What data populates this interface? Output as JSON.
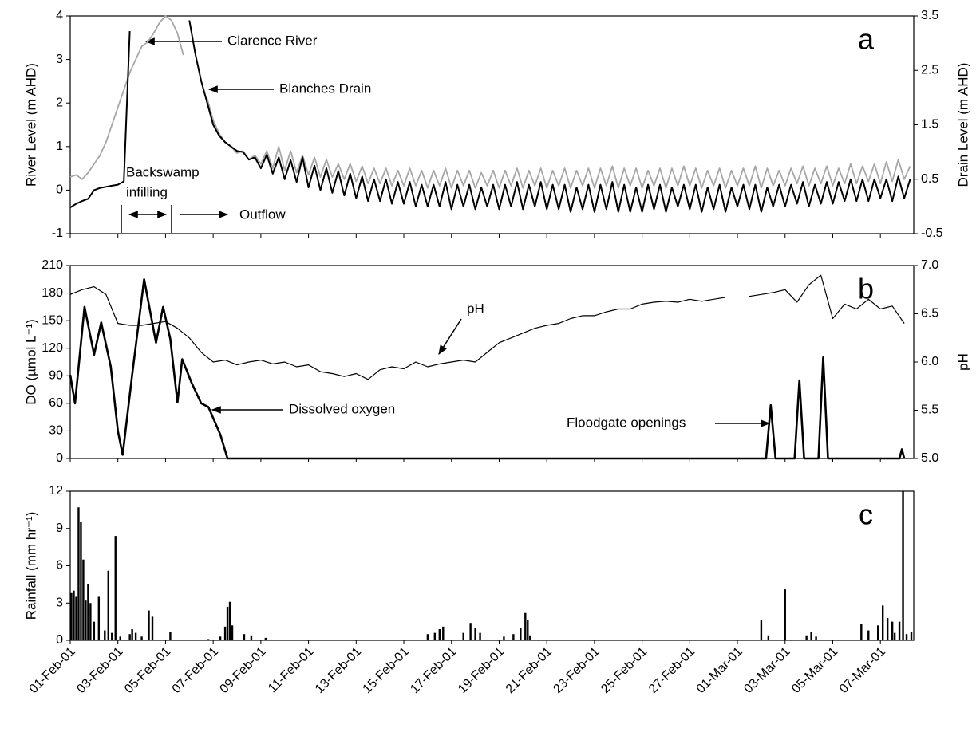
{
  "chart_data": [
    {
      "type": "line",
      "panel_label": "a",
      "y_label": "River Level (m AHD)",
      "y2_label": "Drain Level (m AHD)",
      "xlim": [
        0,
        35.4
      ],
      "ylim": [
        -1,
        4
      ],
      "yticks": [
        -1,
        0,
        1,
        2,
        3,
        4
      ],
      "y2lim": [
        -0.5,
        3.5
      ],
      "y2ticks": [
        -0.5,
        0.5,
        1.5,
        2.5,
        3.5
      ],
      "annotations": [
        "Backswamp",
        "infilling",
        "Outflow"
      ],
      "x": [
        0,
        0.25,
        0.5,
        0.75,
        1,
        1.25,
        1.5,
        1.75,
        2,
        2.25,
        2.5,
        2.75,
        3,
        3.25,
        3.5,
        3.75,
        4,
        4.25,
        4.5,
        4.75,
        5,
        5.25,
        5.5,
        5.75,
        6,
        6.25,
        6.5,
        6.75,
        7,
        7.25,
        7.5,
        7.75,
        8,
        8.25,
        8.5,
        8.75,
        9,
        9.25,
        9.5,
        9.75,
        10,
        10.25,
        10.5,
        10.75,
        11,
        11.25,
        11.5,
        11.75,
        12,
        12.25,
        12.5,
        12.75,
        13,
        13.25,
        13.5,
        13.75,
        14,
        14.25,
        14.5,
        14.75,
        15,
        15.25,
        15.5,
        15.75,
        16,
        16.25,
        16.5,
        16.75,
        17,
        17.25,
        17.5,
        17.75,
        18,
        18.25,
        18.5,
        18.75,
        19,
        19.25,
        19.5,
        19.75,
        20,
        20.25,
        20.5,
        20.75,
        21,
        21.25,
        21.5,
        21.75,
        22,
        22.25,
        22.5,
        22.75,
        23,
        23.25,
        23.5,
        23.75,
        24,
        24.25,
        24.5,
        24.75,
        25,
        25.25,
        25.5,
        25.75,
        26,
        26.25,
        26.5,
        26.75,
        27,
        27.25,
        27.5,
        27.75,
        28,
        28.25,
        28.5,
        28.75,
        29,
        29.25,
        29.5,
        29.75,
        30,
        30.25,
        30.5,
        30.75,
        31,
        31.25,
        31.5,
        31.75,
        32,
        32.25,
        32.5,
        32.75,
        33,
        33.25,
        33.5,
        33.75,
        34,
        34.25,
        34.5,
        34.75,
        35,
        35.25
      ],
      "series": [
        {
          "name": "Clarence River",
          "color": "#a6a6a6",
          "axis": "y",
          "values": [
            0.3,
            0.35,
            0.25,
            0.4,
            0.6,
            0.8,
            1.1,
            1.5,
            1.9,
            2.3,
            2.7,
            3.0,
            3.3,
            3.4,
            3.6,
            3.85,
            4.0,
            3.9,
            3.6,
            3.1,
            null,
            null,
            null,
            2.1,
            1.6,
            1.3,
            1.1,
            1.0,
            0.85,
            0.9,
            0.7,
            0.8,
            0.6,
            0.9,
            0.5,
            1.0,
            0.45,
            0.9,
            0.4,
            0.8,
            0.35,
            0.75,
            0.3,
            0.7,
            0.3,
            0.6,
            0.25,
            0.6,
            0.2,
            0.55,
            0.15,
            0.5,
            0.15,
            0.5,
            0.1,
            0.45,
            0.1,
            0.5,
            0.1,
            0.45,
            0.05,
            0.45,
            0.1,
            0.5,
            0.05,
            0.45,
            0.1,
            0.45,
            0.05,
            0.4,
            0.1,
            0.45,
            0.05,
            0.45,
            0.1,
            0.5,
            0.05,
            0.45,
            0.1,
            0.5,
            0.05,
            0.45,
            0.1,
            0.5,
            0.05,
            0.45,
            0.1,
            0.5,
            0.05,
            0.5,
            0.1,
            0.55,
            0.05,
            0.5,
            0.1,
            0.5,
            0.05,
            0.45,
            0.1,
            0.5,
            0.05,
            0.5,
            0.1,
            0.55,
            0.1,
            0.5,
            0.05,
            0.45,
            0.1,
            0.5,
            0.05,
            0.45,
            0.1,
            0.5,
            0.1,
            0.55,
            0.05,
            0.5,
            0.1,
            0.45,
            0.1,
            0.5,
            0.15,
            0.55,
            0.1,
            0.5,
            0.15,
            0.55,
            0.1,
            0.5,
            0.15,
            0.6,
            0.15,
            0.55,
            0.2,
            0.6,
            0.15,
            0.65,
            0.2,
            0.7,
            0.25,
            0.55
          ]
        },
        {
          "name": "Blanches Drain",
          "color": "#000000",
          "axis": "y2",
          "values": [
            -0.02,
            0.05,
            0.1,
            0.14,
            0.3,
            0.34,
            0.36,
            0.38,
            0.4,
            0.46,
            3.22,
            null,
            null,
            null,
            null,
            null,
            null,
            null,
            null,
            null,
            3.42,
            2.8,
            2.3,
            1.9,
            1.5,
            1.3,
            1.18,
            1.1,
            1.02,
            1.0,
            0.86,
            0.9,
            0.7,
            0.95,
            0.6,
            0.9,
            0.5,
            0.85,
            0.45,
            0.9,
            0.35,
            0.75,
            0.3,
            0.7,
            0.25,
            0.65,
            0.2,
            0.6,
            0.15,
            0.55,
            0.1,
            0.5,
            0.1,
            0.5,
            0.05,
            0.45,
            0.05,
            0.45,
            0.0,
            0.4,
            0.0,
            0.4,
            0.0,
            0.45,
            -0.05,
            0.4,
            0.0,
            0.4,
            -0.05,
            0.35,
            0.0,
            0.4,
            -0.05,
            0.4,
            0.0,
            0.45,
            -0.05,
            0.4,
            0.0,
            0.45,
            -0.05,
            0.4,
            -0.05,
            0.4,
            -0.1,
            0.35,
            -0.05,
            0.4,
            -0.1,
            0.4,
            -0.05,
            0.45,
            -0.1,
            0.4,
            -0.1,
            0.35,
            -0.1,
            0.4,
            -0.05,
            0.4,
            -0.1,
            0.35,
            0.0,
            0.4,
            -0.05,
            0.4,
            -0.1,
            0.35,
            -0.05,
            0.4,
            -0.1,
            0.35,
            0.0,
            0.4,
            -0.05,
            0.4,
            -0.1,
            0.35,
            0.0,
            0.4,
            0.0,
            0.4,
            0.05,
            0.45,
            0.0,
            0.4,
            0.05,
            0.45,
            0.05,
            0.45,
            0.1,
            0.5,
            0.1,
            0.5,
            0.1,
            0.5,
            0.15,
            0.5,
            0.1,
            0.55,
            0.15,
            0.5
          ]
        }
      ]
    },
    {
      "type": "line",
      "panel_label": "b",
      "y_label": "DO (µmol L⁻¹)",
      "y2_label": "pH",
      "xlim": [
        0,
        35.4
      ],
      "ylim": [
        0,
        210
      ],
      "yticks": [
        0,
        30,
        60,
        90,
        120,
        150,
        180,
        210
      ],
      "y2lim": [
        5,
        7
      ],
      "y2ticks": [
        {
          "value": 5,
          "label": "5.0"
        },
        {
          "value": 5.5,
          "label": "5.5"
        },
        {
          "value": 6,
          "label": "6.0"
        },
        {
          "value": 6.5,
          "label": "6.5"
        },
        {
          "value": 7,
          "label": "7.0"
        }
      ],
      "annotations": [
        "Floodgate openings"
      ],
      "series": [
        {
          "name": "pH",
          "color": "#000000",
          "axis": "y2",
          "x": [
            0,
            0.5,
            1,
            1.5,
            2,
            2.5,
            3,
            3.5,
            4,
            4.5,
            5,
            5.5,
            6,
            6.5,
            7,
            7.5,
            8,
            8.5,
            9,
            9.5,
            10,
            10.5,
            11,
            11.5,
            12,
            12.5,
            13,
            13.5,
            14,
            14.5,
            15,
            15.5,
            16,
            16.5,
            17,
            17.5,
            18,
            18.5,
            19,
            19.5,
            20,
            20.5,
            21,
            21.5,
            22,
            22.5,
            23,
            23.5,
            24,
            24.5,
            25,
            25.5,
            26,
            26.5,
            27,
            27.5,
            28,
            28.5,
            29,
            29.5,
            30,
            30.5,
            31,
            31.5,
            32,
            32.5,
            33,
            33.5,
            34,
            34.5,
            35
          ],
          "values": [
            6.7,
            6.75,
            6.78,
            6.7,
            6.4,
            6.38,
            6.38,
            6.4,
            6.42,
            6.35,
            6.25,
            6.1,
            6.0,
            6.02,
            5.97,
            6.0,
            6.02,
            5.98,
            6.0,
            5.95,
            5.97,
            5.9,
            5.88,
            5.85,
            5.88,
            5.82,
            5.92,
            5.95,
            5.93,
            6.0,
            5.95,
            5.98,
            6.0,
            6.02,
            6.0,
            6.1,
            6.2,
            6.25,
            6.3,
            6.35,
            6.38,
            6.4,
            6.45,
            6.48,
            6.48,
            6.52,
            6.55,
            6.55,
            6.6,
            6.62,
            6.63,
            6.62,
            6.65,
            6.63,
            6.65,
            6.67,
            null,
            6.68,
            6.7,
            6.72,
            6.75,
            6.62,
            6.8,
            6.9,
            6.45,
            6.6,
            6.55,
            6.65,
            6.55,
            6.58,
            6.4
          ]
        },
        {
          "name": "Dissolved oxygen",
          "color": "#000000",
          "axis": "y",
          "x": [
            0,
            0.2,
            0.6,
            1.0,
            1.3,
            1.7,
            2.0,
            2.2,
            2.6,
            3.1,
            3.6,
            3.9,
            4.2,
            4.5,
            4.7,
            5.1,
            5.5,
            5.8,
            6.3,
            6.6,
            29.2,
            29.4,
            29.6,
            30.4,
            30.6,
            30.8,
            31.4,
            31.6,
            31.8,
            34.8,
            34.9,
            35.0
          ],
          "values": [
            91,
            60,
            165,
            113,
            148,
            100,
            30,
            4,
            91,
            195,
            126,
            165,
            130,
            61,
            108,
            82,
            60,
            56,
            26,
            0,
            0,
            58,
            0,
            0,
            85,
            0,
            0,
            110,
            0,
            0,
            10,
            0
          ]
        }
      ]
    },
    {
      "type": "bar",
      "panel_label": "c",
      "y_label": "Rainfall (mm hr⁻¹)",
      "xlim": [
        0,
        35.4
      ],
      "ylim": [
        0,
        12
      ],
      "yticks": [
        0,
        3,
        6,
        9,
        12
      ],
      "xticks": [
        {
          "value": 0,
          "label": "01-Feb-01"
        },
        {
          "value": 2,
          "label": "03-Feb-01"
        },
        {
          "value": 4,
          "label": "05-Feb-01"
        },
        {
          "value": 6,
          "label": "07-Feb-01"
        },
        {
          "value": 8,
          "label": "09-Feb-01"
        },
        {
          "value": 10,
          "label": "11-Feb-01"
        },
        {
          "value": 12,
          "label": "13-Feb-01"
        },
        {
          "value": 14,
          "label": "15-Feb-01"
        },
        {
          "value": 16,
          "label": "17-Feb-01"
        },
        {
          "value": 18,
          "label": "19-Feb-01"
        },
        {
          "value": 20,
          "label": "21-Feb-01"
        },
        {
          "value": 22,
          "label": "23-Feb-01"
        },
        {
          "value": 24,
          "label": "25-Feb-01"
        },
        {
          "value": 26,
          "label": "27-Feb-01"
        },
        {
          "value": 28,
          "label": "01-Mar-01"
        },
        {
          "value": 30,
          "label": "03-Mar-01"
        },
        {
          "value": 32,
          "label": "05-Mar-01"
        },
        {
          "value": 34,
          "label": "07-Mar-01"
        }
      ],
      "color": "#000000",
      "x": [
        0.05,
        0.15,
        0.25,
        0.35,
        0.45,
        0.55,
        0.65,
        0.75,
        0.85,
        1.0,
        1.2,
        1.45,
        1.6,
        1.75,
        1.9,
        2.1,
        2.5,
        2.6,
        2.75,
        3.0,
        3.3,
        3.45,
        4.2,
        5.8,
        6.3,
        6.5,
        6.6,
        6.7,
        6.8,
        7.3,
        7.6,
        8.2,
        15.0,
        15.3,
        15.5,
        15.65,
        16.5,
        16.8,
        17.0,
        17.2,
        18.2,
        18.6,
        18.9,
        19.1,
        19.2,
        19.3,
        29.0,
        29.3,
        30.0,
        30.9,
        31.1,
        31.3,
        33.2,
        33.5,
        33.9,
        34.1,
        34.3,
        34.5,
        34.6,
        34.8,
        34.95,
        35.1,
        35.3
      ],
      "values": [
        3.8,
        4.0,
        3.5,
        10.7,
        9.5,
        6.5,
        3.2,
        4.5,
        3.0,
        1.5,
        3.5,
        0.8,
        5.6,
        0.6,
        8.4,
        0.3,
        0.5,
        0.9,
        0.6,
        0.3,
        2.4,
        1.9,
        0.7,
        0.1,
        0.3,
        1.1,
        2.7,
        3.1,
        1.2,
        0.5,
        0.4,
        0.2,
        0.5,
        0.6,
        0.9,
        1.1,
        0.6,
        1.4,
        1.0,
        0.6,
        0.3,
        0.5,
        1.0,
        2.2,
        1.6,
        0.4,
        1.6,
        0.4,
        4.1,
        0.4,
        0.7,
        0.3,
        1.3,
        0.8,
        1.2,
        2.8,
        1.8,
        1.5,
        0.6,
        1.5,
        12,
        0.5,
        0.7
      ]
    }
  ]
}
